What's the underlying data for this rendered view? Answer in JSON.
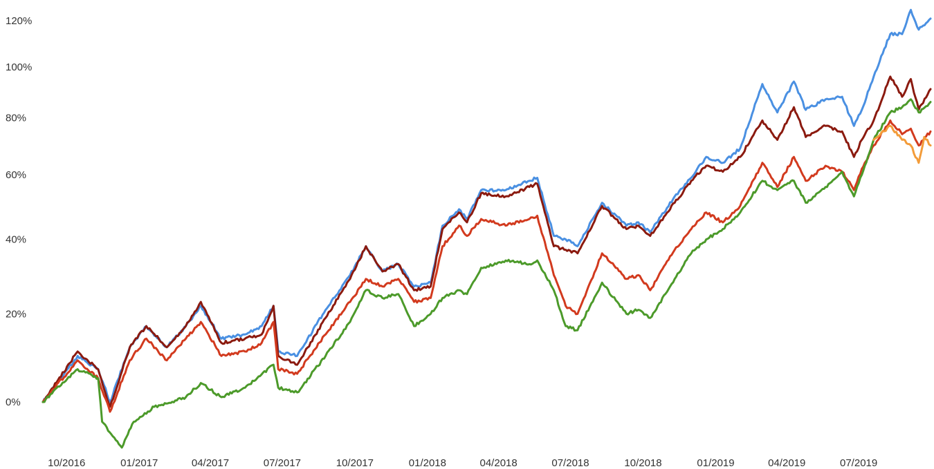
{
  "chart_data": {
    "type": "line",
    "title": "",
    "xlabel": "",
    "ylabel": "",
    "y_scale": "log-growth",
    "ylim": [
      -0.12,
      1.28
    ],
    "grid": false,
    "legend": "none",
    "y_ticks": [
      {
        "value": 0.0,
        "label": "0%"
      },
      {
        "value": 0.2,
        "label": "20%"
      },
      {
        "value": 0.4,
        "label": "40%"
      },
      {
        "value": 0.6,
        "label": "60%"
      },
      {
        "value": 0.8,
        "label": "80%"
      },
      {
        "value": 1.0,
        "label": "100%"
      },
      {
        "value": 1.2,
        "label": "120%"
      }
    ],
    "x_ticks": [
      "10/2016",
      "01/2017",
      "04/2017",
      "07/2017",
      "10/2017",
      "01/2018",
      "04/2018",
      "07/2018",
      "10/2018",
      "01/2019",
      "04/2019",
      "07/2019"
    ],
    "x_range": [
      "2016-09-01",
      "2019-09-30"
    ],
    "series": [
      {
        "color": "#4a90e2",
        "points": [
          [
            "2016-09-01",
            0.0
          ],
          [
            "2016-10-15",
            0.1
          ],
          [
            "2016-11-10",
            0.07
          ],
          [
            "2016-11-25",
            0.0
          ],
          [
            "2016-12-20",
            0.12
          ],
          [
            "2017-01-10",
            0.17
          ],
          [
            "2017-02-05",
            0.12
          ],
          [
            "2017-03-01",
            0.17
          ],
          [
            "2017-03-20",
            0.22
          ],
          [
            "2017-04-15",
            0.14
          ],
          [
            "2017-05-15",
            0.15
          ],
          [
            "2017-06-05",
            0.17
          ],
          [
            "2017-06-20",
            0.22
          ],
          [
            "2017-06-26",
            0.11
          ],
          [
            "2017-07-20",
            0.1
          ],
          [
            "2017-08-25",
            0.21
          ],
          [
            "2017-09-25",
            0.3
          ],
          [
            "2017-10-15",
            0.38
          ],
          [
            "2017-11-05",
            0.31
          ],
          [
            "2017-11-25",
            0.33
          ],
          [
            "2017-12-15",
            0.27
          ],
          [
            "2018-01-05",
            0.28
          ],
          [
            "2018-01-20",
            0.44
          ],
          [
            "2018-02-10",
            0.49
          ],
          [
            "2018-02-20",
            0.46
          ],
          [
            "2018-03-10",
            0.55
          ],
          [
            "2018-04-10",
            0.55
          ],
          [
            "2018-05-10",
            0.58
          ],
          [
            "2018-05-20",
            0.59
          ],
          [
            "2018-06-10",
            0.41
          ],
          [
            "2018-06-25",
            0.4
          ],
          [
            "2018-07-10",
            0.38
          ],
          [
            "2018-08-10",
            0.51
          ],
          [
            "2018-09-10",
            0.44
          ],
          [
            "2018-09-25",
            0.45
          ],
          [
            "2018-10-10",
            0.42
          ],
          [
            "2018-11-10",
            0.53
          ],
          [
            "2018-12-01",
            0.59
          ],
          [
            "2018-12-20",
            0.66
          ],
          [
            "2019-01-10",
            0.64
          ],
          [
            "2019-02-01",
            0.69
          ],
          [
            "2019-03-01",
            0.93
          ],
          [
            "2019-03-20",
            0.82
          ],
          [
            "2019-04-10",
            0.94
          ],
          [
            "2019-04-25",
            0.83
          ],
          [
            "2019-05-20",
            0.87
          ],
          [
            "2019-06-10",
            0.88
          ],
          [
            "2019-06-25",
            0.77
          ],
          [
            "2019-07-05",
            0.83
          ],
          [
            "2019-07-20",
            0.96
          ],
          [
            "2019-08-10",
            1.14
          ],
          [
            "2019-08-25",
            1.14
          ],
          [
            "2019-09-05",
            1.25
          ],
          [
            "2019-09-15",
            1.16
          ],
          [
            "2019-09-30",
            1.21
          ]
        ]
      },
      {
        "color": "#8b1a0f",
        "points": [
          [
            "2016-09-01",
            0.0
          ],
          [
            "2016-10-15",
            0.11
          ],
          [
            "2016-11-10",
            0.07
          ],
          [
            "2016-11-25",
            -0.01
          ],
          [
            "2016-12-20",
            0.12
          ],
          [
            "2017-01-10",
            0.17
          ],
          [
            "2017-02-05",
            0.12
          ],
          [
            "2017-03-01",
            0.17
          ],
          [
            "2017-03-20",
            0.23
          ],
          [
            "2017-04-15",
            0.13
          ],
          [
            "2017-05-15",
            0.14
          ],
          [
            "2017-06-05",
            0.15
          ],
          [
            "2017-06-20",
            0.22
          ],
          [
            "2017-06-26",
            0.1
          ],
          [
            "2017-07-20",
            0.08
          ],
          [
            "2017-08-25",
            0.19
          ],
          [
            "2017-09-25",
            0.29
          ],
          [
            "2017-10-15",
            0.38
          ],
          [
            "2017-11-05",
            0.31
          ],
          [
            "2017-11-25",
            0.33
          ],
          [
            "2017-12-15",
            0.26
          ],
          [
            "2018-01-05",
            0.27
          ],
          [
            "2018-01-20",
            0.43
          ],
          [
            "2018-02-10",
            0.48
          ],
          [
            "2018-02-20",
            0.45
          ],
          [
            "2018-03-10",
            0.54
          ],
          [
            "2018-04-10",
            0.53
          ],
          [
            "2018-05-10",
            0.56
          ],
          [
            "2018-05-20",
            0.57
          ],
          [
            "2018-06-10",
            0.38
          ],
          [
            "2018-06-25",
            0.37
          ],
          [
            "2018-07-10",
            0.36
          ],
          [
            "2018-08-10",
            0.5
          ],
          [
            "2018-09-10",
            0.43
          ],
          [
            "2018-09-25",
            0.44
          ],
          [
            "2018-10-10",
            0.41
          ],
          [
            "2018-11-10",
            0.51
          ],
          [
            "2018-12-01",
            0.58
          ],
          [
            "2018-12-20",
            0.63
          ],
          [
            "2019-01-10",
            0.61
          ],
          [
            "2019-02-01",
            0.66
          ],
          [
            "2019-03-01",
            0.79
          ],
          [
            "2019-03-20",
            0.72
          ],
          [
            "2019-04-10",
            0.84
          ],
          [
            "2019-04-25",
            0.73
          ],
          [
            "2019-05-20",
            0.77
          ],
          [
            "2019-06-10",
            0.75
          ],
          [
            "2019-06-25",
            0.66
          ],
          [
            "2019-07-05",
            0.72
          ],
          [
            "2019-07-20",
            0.79
          ],
          [
            "2019-08-10",
            0.96
          ],
          [
            "2019-08-25",
            0.88
          ],
          [
            "2019-09-05",
            0.95
          ],
          [
            "2019-09-15",
            0.83
          ],
          [
            "2019-09-30",
            0.91
          ]
        ]
      },
      {
        "color": "#d23a1e",
        "points": [
          [
            "2016-09-01",
            0.0
          ],
          [
            "2016-10-15",
            0.09
          ],
          [
            "2016-11-10",
            0.05
          ],
          [
            "2016-11-25",
            -0.02
          ],
          [
            "2016-12-20",
            0.09
          ],
          [
            "2017-01-10",
            0.14
          ],
          [
            "2017-02-05",
            0.09
          ],
          [
            "2017-03-01",
            0.14
          ],
          [
            "2017-03-20",
            0.18
          ],
          [
            "2017-04-15",
            0.1
          ],
          [
            "2017-05-15",
            0.11
          ],
          [
            "2017-06-05",
            0.13
          ],
          [
            "2017-06-20",
            0.18
          ],
          [
            "2017-06-26",
            0.07
          ],
          [
            "2017-07-20",
            0.06
          ],
          [
            "2017-08-25",
            0.15
          ],
          [
            "2017-09-25",
            0.23
          ],
          [
            "2017-10-15",
            0.29
          ],
          [
            "2017-11-05",
            0.27
          ],
          [
            "2017-11-25",
            0.29
          ],
          [
            "2017-12-15",
            0.23
          ],
          [
            "2018-01-05",
            0.24
          ],
          [
            "2018-01-20",
            0.38
          ],
          [
            "2018-02-10",
            0.44
          ],
          [
            "2018-02-20",
            0.41
          ],
          [
            "2018-03-10",
            0.46
          ],
          [
            "2018-04-10",
            0.44
          ],
          [
            "2018-05-10",
            0.46
          ],
          [
            "2018-05-20",
            0.47
          ],
          [
            "2018-06-10",
            0.3
          ],
          [
            "2018-06-25",
            0.22
          ],
          [
            "2018-07-10",
            0.2
          ],
          [
            "2018-08-10",
            0.36
          ],
          [
            "2018-09-10",
            0.29
          ],
          [
            "2018-09-25",
            0.3
          ],
          [
            "2018-10-10",
            0.26
          ],
          [
            "2018-11-10",
            0.37
          ],
          [
            "2018-12-01",
            0.43
          ],
          [
            "2018-12-20",
            0.48
          ],
          [
            "2019-01-10",
            0.45
          ],
          [
            "2019-02-01",
            0.5
          ],
          [
            "2019-03-01",
            0.64
          ],
          [
            "2019-03-20",
            0.56
          ],
          [
            "2019-04-10",
            0.66
          ],
          [
            "2019-04-25",
            0.58
          ],
          [
            "2019-05-20",
            0.63
          ],
          [
            "2019-06-10",
            0.61
          ],
          [
            "2019-06-25",
            0.55
          ],
          [
            "2019-07-05",
            0.62
          ],
          [
            "2019-07-20",
            0.7
          ],
          [
            "2019-08-10",
            0.79
          ],
          [
            "2019-08-25",
            0.74
          ],
          [
            "2019-09-05",
            0.76
          ],
          [
            "2019-09-15",
            0.7
          ],
          [
            "2019-09-30",
            0.75
          ]
        ]
      },
      {
        "color": "#4c9a2a",
        "points": [
          [
            "2016-09-01",
            0.0
          ],
          [
            "2016-10-15",
            0.07
          ],
          [
            "2016-11-10",
            0.05
          ],
          [
            "2016-11-15",
            -0.04
          ],
          [
            "2016-12-10",
            -0.09
          ],
          [
            "2016-12-25",
            -0.04
          ],
          [
            "2017-01-20",
            -0.01
          ],
          [
            "2017-03-01",
            0.01
          ],
          [
            "2017-03-20",
            0.04
          ],
          [
            "2017-04-15",
            0.01
          ],
          [
            "2017-05-15",
            0.03
          ],
          [
            "2017-06-20",
            0.08
          ],
          [
            "2017-06-26",
            0.03
          ],
          [
            "2017-07-20",
            0.02
          ],
          [
            "2017-08-25",
            0.1
          ],
          [
            "2017-09-25",
            0.18
          ],
          [
            "2017-10-15",
            0.26
          ],
          [
            "2017-11-05",
            0.24
          ],
          [
            "2017-11-25",
            0.25
          ],
          [
            "2017-12-15",
            0.17
          ],
          [
            "2018-01-05",
            0.2
          ],
          [
            "2018-01-20",
            0.24
          ],
          [
            "2018-02-10",
            0.26
          ],
          [
            "2018-02-20",
            0.25
          ],
          [
            "2018-03-10",
            0.32
          ],
          [
            "2018-04-10",
            0.34
          ],
          [
            "2018-05-10",
            0.33
          ],
          [
            "2018-05-20",
            0.34
          ],
          [
            "2018-06-10",
            0.26
          ],
          [
            "2018-06-25",
            0.17
          ],
          [
            "2018-07-10",
            0.16
          ],
          [
            "2018-08-10",
            0.28
          ],
          [
            "2018-09-10",
            0.2
          ],
          [
            "2018-09-25",
            0.21
          ],
          [
            "2018-10-10",
            0.19
          ],
          [
            "2018-11-10",
            0.29
          ],
          [
            "2018-12-01",
            0.36
          ],
          [
            "2018-12-20",
            0.4
          ],
          [
            "2019-01-10",
            0.43
          ],
          [
            "2019-02-01",
            0.48
          ],
          [
            "2019-03-01",
            0.58
          ],
          [
            "2019-03-20",
            0.55
          ],
          [
            "2019-04-10",
            0.58
          ],
          [
            "2019-04-25",
            0.51
          ],
          [
            "2019-05-20",
            0.56
          ],
          [
            "2019-06-10",
            0.61
          ],
          [
            "2019-06-25",
            0.53
          ],
          [
            "2019-07-05",
            0.6
          ],
          [
            "2019-07-20",
            0.72
          ],
          [
            "2019-08-10",
            0.82
          ],
          [
            "2019-08-25",
            0.84
          ],
          [
            "2019-09-05",
            0.87
          ],
          [
            "2019-09-15",
            0.82
          ],
          [
            "2019-09-30",
            0.86
          ]
        ]
      },
      {
        "color": "#f39c3a",
        "points": [
          [
            "2019-07-20",
            0.72
          ],
          [
            "2019-08-10",
            0.77
          ],
          [
            "2019-08-25",
            0.72
          ],
          [
            "2019-09-05",
            0.7
          ],
          [
            "2019-09-15",
            0.64
          ],
          [
            "2019-09-22",
            0.73
          ],
          [
            "2019-09-30",
            0.7
          ]
        ]
      }
    ]
  }
}
